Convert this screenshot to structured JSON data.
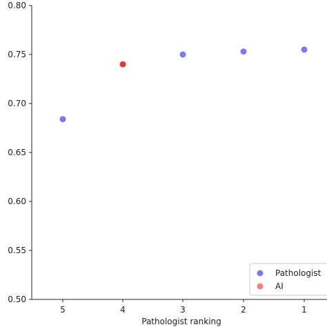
{
  "chart_data": {
    "type": "scatter",
    "title": "",
    "xlabel": "Pathologist ranking",
    "ylabel": "",
    "x_categories": [
      "5",
      "4",
      "3",
      "2",
      "1"
    ],
    "ylim": [
      0.5,
      0.8
    ],
    "yticks": [
      "0.50",
      "0.55",
      "0.60",
      "0.65",
      "0.70",
      "0.75",
      "0.80"
    ],
    "grid": false,
    "legend_placement": "bottom-right",
    "series": [
      {
        "name": "Pathologist",
        "color": "#7b7bf0",
        "points": [
          {
            "x": "5",
            "y": 0.684
          },
          {
            "x": "3",
            "y": 0.75
          },
          {
            "x": "2",
            "y": 0.753
          },
          {
            "x": "1",
            "y": 0.755
          }
        ]
      },
      {
        "name": "AI",
        "color": "#e03a3a",
        "legend_color": "#f08080",
        "points": [
          {
            "x": "4",
            "y": 0.74
          }
        ]
      }
    ]
  }
}
